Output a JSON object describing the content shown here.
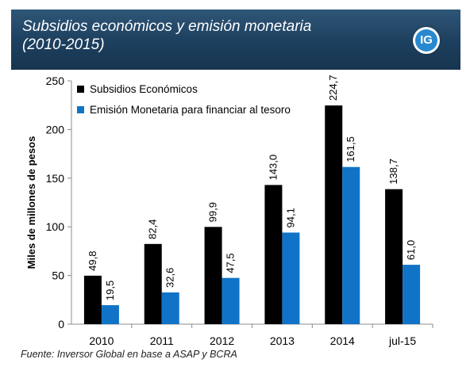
{
  "header": {
    "title_line1": "Subsidios económicos y emisión monetaria",
    "title_line2": "(2010-2015)",
    "logo_text": "IG",
    "background_color": "#1f4464"
  },
  "source_note": "Fuente: Inversor Global en base a ASAP y BCRA",
  "chart_data": {
    "type": "bar",
    "categories": [
      "2010",
      "2011",
      "2012",
      "2013",
      "2014",
      "jul-15"
    ],
    "series": [
      {
        "name": "Subsidios Económicos",
        "values": [
          49.8,
          82.4,
          99.9,
          143.0,
          224.7,
          138.7
        ],
        "labels": [
          "49,8",
          "82,4",
          "99,9",
          "143,0",
          "224,7",
          "138,7"
        ],
        "color": "#000000"
      },
      {
        "name": "Emisión Monetaria para financiar al tesoro",
        "values": [
          19.5,
          32.6,
          47.5,
          94.1,
          161.5,
          61.0
        ],
        "labels": [
          "19,5",
          "32,6",
          "47,5",
          "94,1",
          "161,5",
          "61,0"
        ],
        "color": "#1173c7"
      }
    ],
    "title": "Subsidios económicos y emisión monetaria (2010-2015)",
    "xlabel": "",
    "ylabel": "Miles de millones de pesos",
    "ylim": [
      0,
      250
    ],
    "yticks": [
      0,
      50,
      100,
      150,
      200,
      250
    ],
    "grid": false,
    "legend_position": "top-left"
  }
}
